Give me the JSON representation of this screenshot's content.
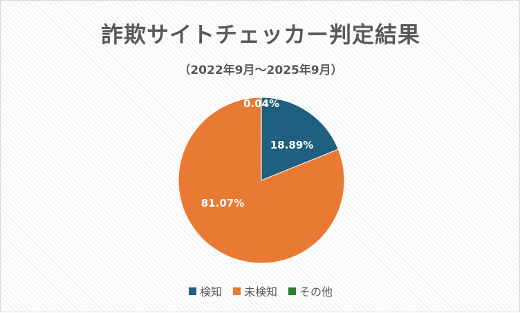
{
  "chart_data": {
    "type": "pie",
    "title": "詐欺サイトチェッカー判定結果",
    "subtitle": "（2022年9月～2025年9月）",
    "slices": [
      {
        "name": "検知",
        "value": 18.89,
        "label": "18.89%",
        "color": "#1f5f7f"
      },
      {
        "name": "未検知",
        "value": 81.07,
        "label": "81.07%",
        "color": "#e97a34"
      },
      {
        "name": "その他",
        "value": 0.04,
        "label": "0.04%",
        "color": "#2e7d32"
      }
    ],
    "legend_position": "bottom"
  }
}
